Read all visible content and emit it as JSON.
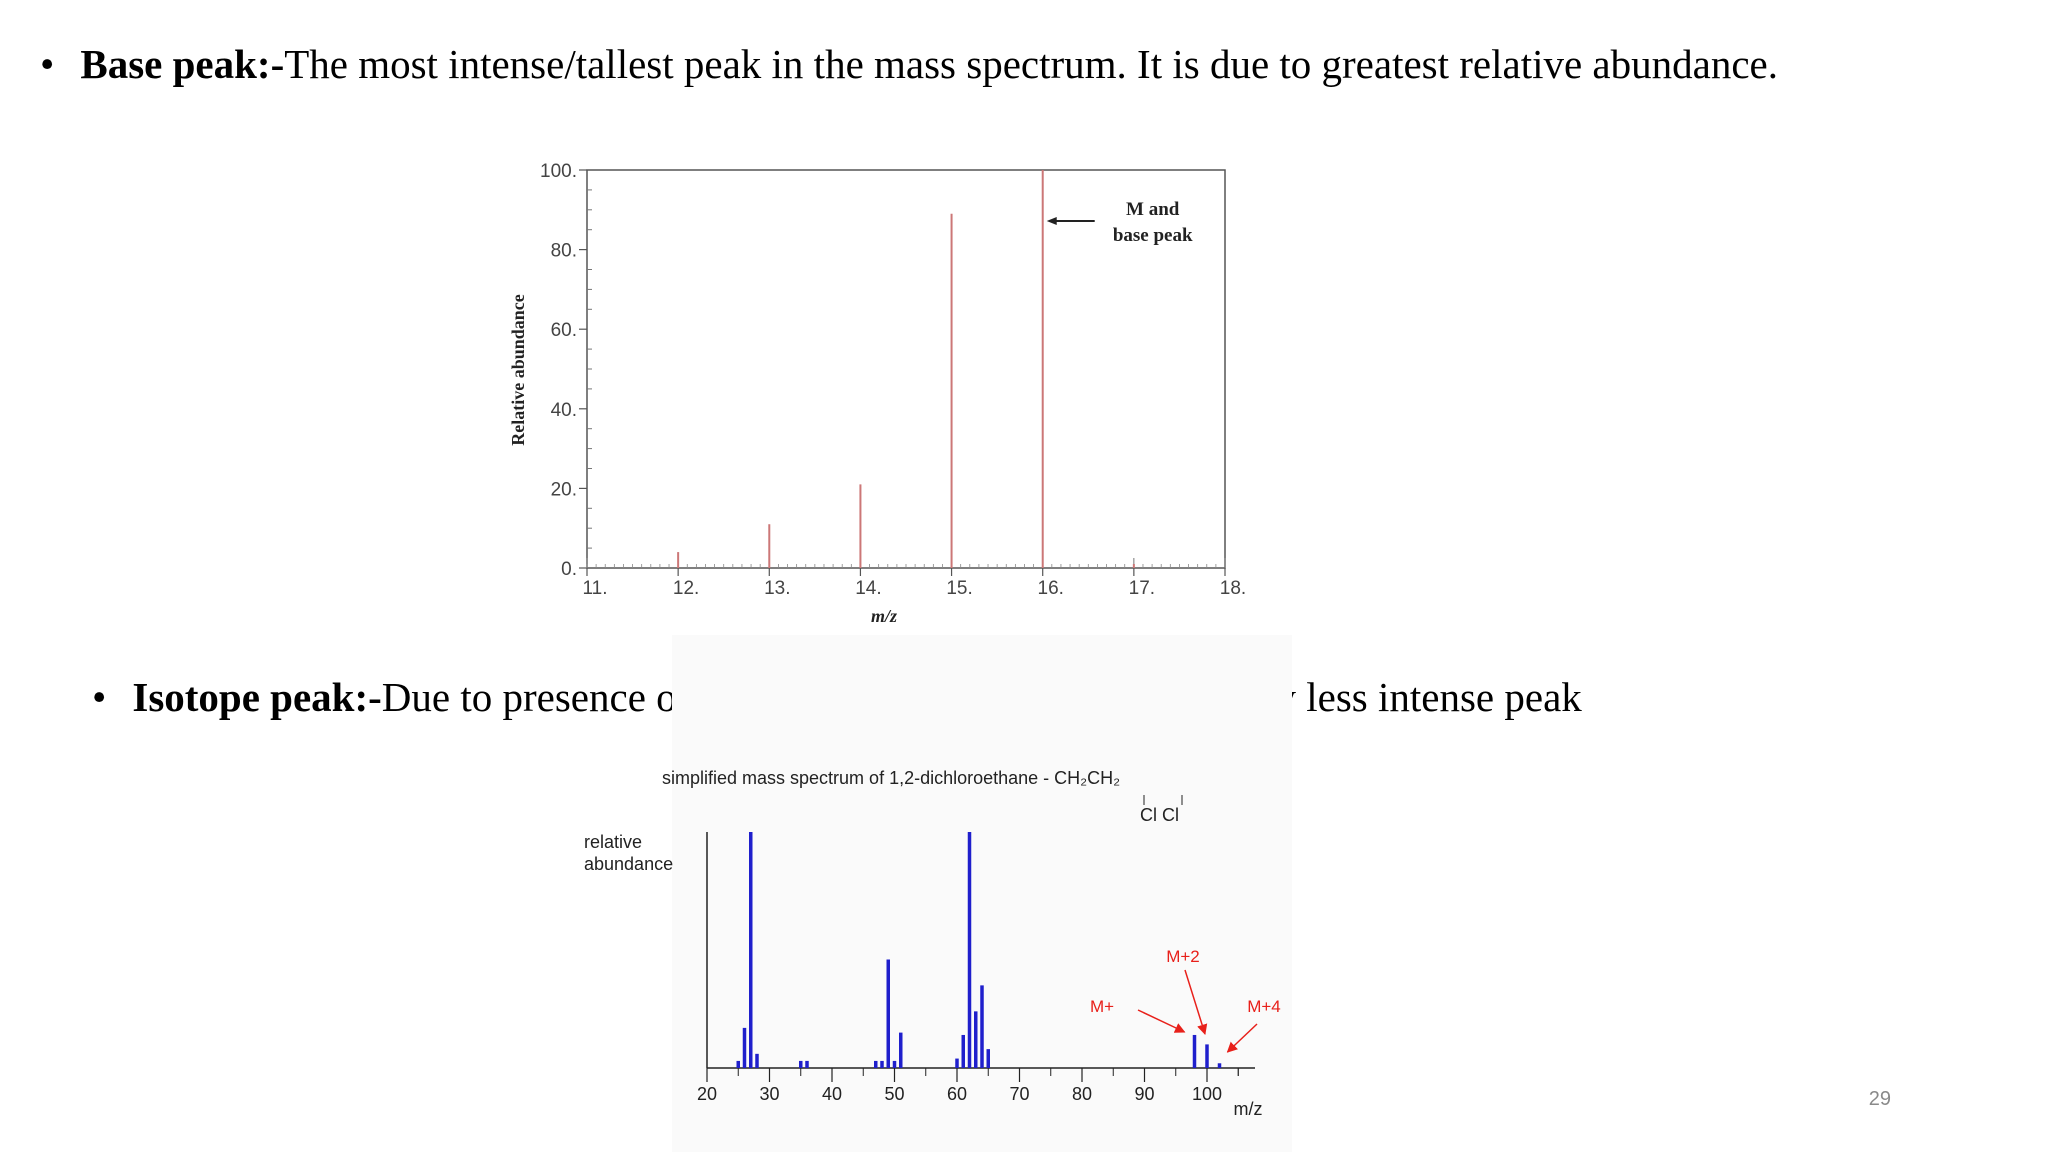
{
  "bullets": [
    {
      "term": "Base peak:-",
      "text": "The most intense/tallest peak in the mass spectrum. It is due to greatest relative abundance."
    },
    {
      "term": "Isotope peak:-",
      "text": "Due to presence of heavier isotope elements ,gives very less intense peak"
    }
  ],
  "bullet_symbol": "•",
  "page_number": "29",
  "chart_data": [
    {
      "type": "bar",
      "ylabel": "Relative abundance",
      "xlabel": "m/z",
      "xlim": [
        11,
        18
      ],
      "ylim": [
        0,
        100
      ],
      "x_ticks": [
        "11.",
        "12.",
        "13.",
        "14.",
        "15.",
        "16.",
        "17.",
        "18."
      ],
      "y_ticks": [
        "0.",
        "20.",
        "40.",
        "60.",
        "80.",
        "100."
      ],
      "x": [
        12,
        13,
        14,
        15,
        16,
        17
      ],
      "values": [
        4,
        11,
        21,
        89,
        100,
        1
      ],
      "color": "#cc7777",
      "annotation": {
        "line1": "M and",
        "line2": "base peak",
        "x": 16
      }
    },
    {
      "type": "bar",
      "title": "simplified mass spectrum of 1,2-dichloroethane  -  CH₂CH₂",
      "title_sub": "Cl   Cl",
      "ylabel_line1": "relative",
      "ylabel_line2": "abundance",
      "xlabel": "m/z",
      "xlim": [
        20,
        105
      ],
      "x_ticks": [
        "20",
        "30",
        "40",
        "50",
        "60",
        "70",
        "80",
        "90",
        "100"
      ],
      "x": [
        25,
        26,
        27,
        28,
        35,
        36,
        47,
        48,
        49,
        50,
        51,
        60,
        61,
        62,
        63,
        64,
        65,
        98,
        100,
        102
      ],
      "values": [
        3,
        17,
        100,
        6,
        3,
        3,
        3,
        3,
        46,
        3,
        15,
        4,
        14,
        100,
        24,
        35,
        8,
        14,
        10,
        2
      ],
      "color": "#1f1fcc",
      "annotations": [
        {
          "label": "M+",
          "x": 98
        },
        {
          "label": "M+2",
          "x": 100
        },
        {
          "label": "M+4",
          "x": 102
        }
      ],
      "annotation_color": "#e8201a"
    }
  ]
}
